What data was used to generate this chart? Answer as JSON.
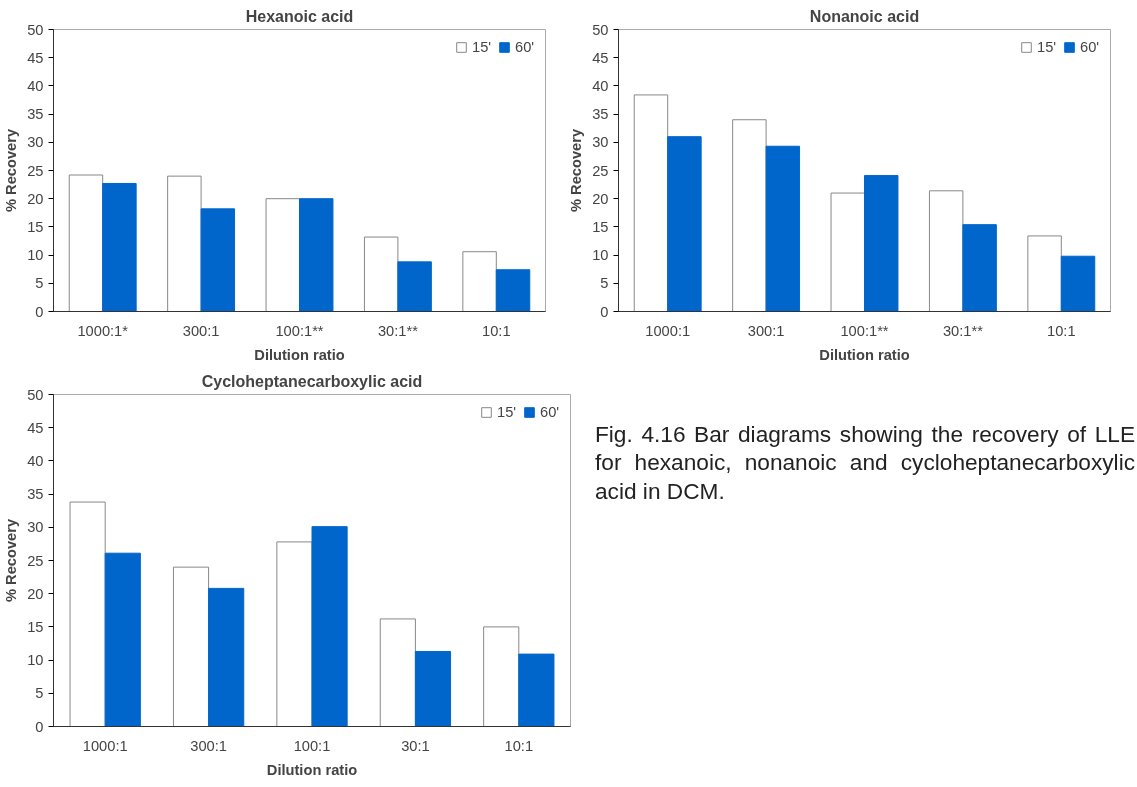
{
  "chart_data": [
    {
      "type": "bar",
      "title": "Hexanoic acid",
      "xlabel": "Dilution ratio",
      "ylabel": "% Recovery",
      "categories": [
        "1000:1*",
        "300:1",
        "100:1**",
        "30:1**",
        "10:1"
      ],
      "series": [
        {
          "name": "15'",
          "color": "#ffffff",
          "values": [
            24.2,
            24.0,
            20.0,
            13.2,
            10.6
          ]
        },
        {
          "name": "60'",
          "color": "#0066cc",
          "values": [
            22.7,
            18.2,
            20.0,
            8.8,
            7.4
          ]
        }
      ],
      "ylim": [
        0,
        50
      ],
      "yticks": [
        0,
        5,
        10,
        15,
        20,
        25,
        30,
        35,
        40,
        45,
        50
      ],
      "grid": false,
      "legend": "top right"
    },
    {
      "type": "bar",
      "title": "Nonanoic acid",
      "xlabel": "Dilution ratio",
      "ylabel": "% Recovery",
      "categories": [
        "1000:1",
        "300:1",
        "100:1**",
        "30:1**",
        "10:1"
      ],
      "series": [
        {
          "name": "15'",
          "color": "#ffffff",
          "values": [
            38.4,
            34.0,
            21.0,
            21.4,
            13.4
          ]
        },
        {
          "name": "60'",
          "color": "#0066cc",
          "values": [
            31.0,
            29.3,
            24.1,
            15.4,
            9.8
          ]
        }
      ],
      "ylim": [
        0,
        50
      ],
      "yticks": [
        0,
        5,
        10,
        15,
        20,
        25,
        30,
        35,
        40,
        45,
        50
      ],
      "grid": false,
      "legend": "top right"
    },
    {
      "type": "bar",
      "title": "Cycloheptanecarboxylic acid",
      "xlabel": "Dilution ratio",
      "ylabel": "% Recovery",
      "categories": [
        "1000:1",
        "300:1",
        "100:1",
        "30:1",
        "10:1"
      ],
      "series": [
        {
          "name": "15'",
          "color": "#ffffff",
          "values": [
            33.8,
            24.0,
            27.8,
            16.2,
            15.0
          ]
        },
        {
          "name": "60'",
          "color": "#0066cc",
          "values": [
            26.1,
            20.8,
            30.1,
            11.3,
            10.9
          ]
        }
      ],
      "ylim": [
        0,
        50
      ],
      "yticks": [
        0,
        5,
        10,
        15,
        20,
        25,
        30,
        35,
        40,
        45,
        50
      ],
      "grid": false,
      "legend": "top right"
    },
    {
      "type": "other",
      "annotations": [
        "Fig. 4.16 Bar diagrams showing the recovery of LLE for hexanoic, nonanoic and cycloheptanecarboxylic acid in DCM."
      ]
    }
  ]
}
